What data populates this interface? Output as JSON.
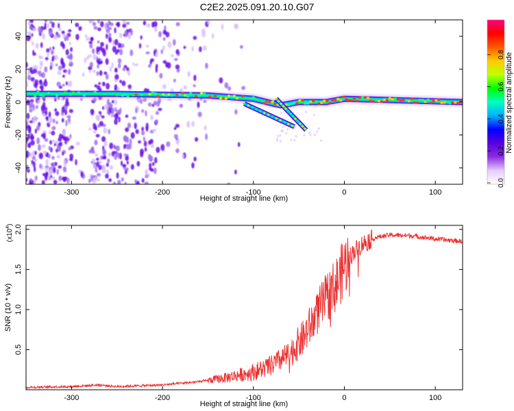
{
  "figure_title": "C2E2.2025.091.20.10.G07",
  "chart_data": [
    {
      "type": "heatmap",
      "xlabel": "Height of straight line (km)",
      "ylabel": "Frequency (Hz)",
      "xlim": [
        -350,
        130
      ],
      "ylim": [
        -50,
        50
      ],
      "x_ticks": [
        -300,
        -200,
        -100,
        0,
        100
      ],
      "y_ticks": [
        -40,
        -20,
        0,
        20,
        40
      ],
      "colorbar": {
        "label": "Normalized spectral amplitude",
        "range": [
          0,
          1
        ],
        "ticks": [
          "0.0",
          "0.2",
          "0.4",
          "0.6",
          "0.8"
        ],
        "colors": [
          "#ffffff",
          "#e6ccff",
          "#8a2be2",
          "#5a00e0",
          "#0000ff",
          "#00b0ff",
          "#00ffc0",
          "#00ff00",
          "#c0ff00",
          "#ffcc00",
          "#ff5a00",
          "#ff0000",
          "#ff0080"
        ]
      },
      "ridge": [
        {
          "x": -350,
          "y": 5
        },
        {
          "x": -250,
          "y": 5
        },
        {
          "x": -150,
          "y": 4
        },
        {
          "x": -100,
          "y": 2
        },
        {
          "x": -70,
          "y": -2
        },
        {
          "x": -50,
          "y": 0
        },
        {
          "x": -20,
          "y": 0
        },
        {
          "x": 0,
          "y": 2
        },
        {
          "x": 130,
          "y": 0
        }
      ],
      "branches": [
        {
          "x_from": -110,
          "y_from": -1,
          "x_to": -55,
          "y_to": -15
        },
        {
          "x_from": -75,
          "y_from": 2,
          "x_to": -42,
          "y_to": -17
        }
      ]
    },
    {
      "type": "line",
      "xlabel": "Height of straight line (km)",
      "ylabel": "SNR (10 * v/v)",
      "y_multiplier": "(x10",
      "y_multiplier_exp": "4",
      "xlim": [
        -350,
        130
      ],
      "ylim": [
        0,
        2.05
      ],
      "x_ticks": [
        -300,
        -200,
        -100,
        0,
        100
      ],
      "y_ticks": [
        "0.5",
        "1.0",
        "1.5",
        "2.0"
      ],
      "color": "#ee3030",
      "series": [
        {
          "x": [
            -350,
            -300,
            -270,
            -250,
            -200,
            -160,
            -130,
            -100,
            -80,
            -60,
            -45,
            -35,
            -25,
            -15,
            -10,
            -5,
            0,
            10,
            20,
            35,
            50,
            75,
            100,
            130
          ],
          "values": [
            0.03,
            0.04,
            0.06,
            0.04,
            0.06,
            0.1,
            0.15,
            0.22,
            0.3,
            0.45,
            0.65,
            0.85,
            1.05,
            1.22,
            1.3,
            1.4,
            1.55,
            1.72,
            1.82,
            1.9,
            1.93,
            1.92,
            1.88,
            1.85
          ]
        }
      ]
    }
  ]
}
